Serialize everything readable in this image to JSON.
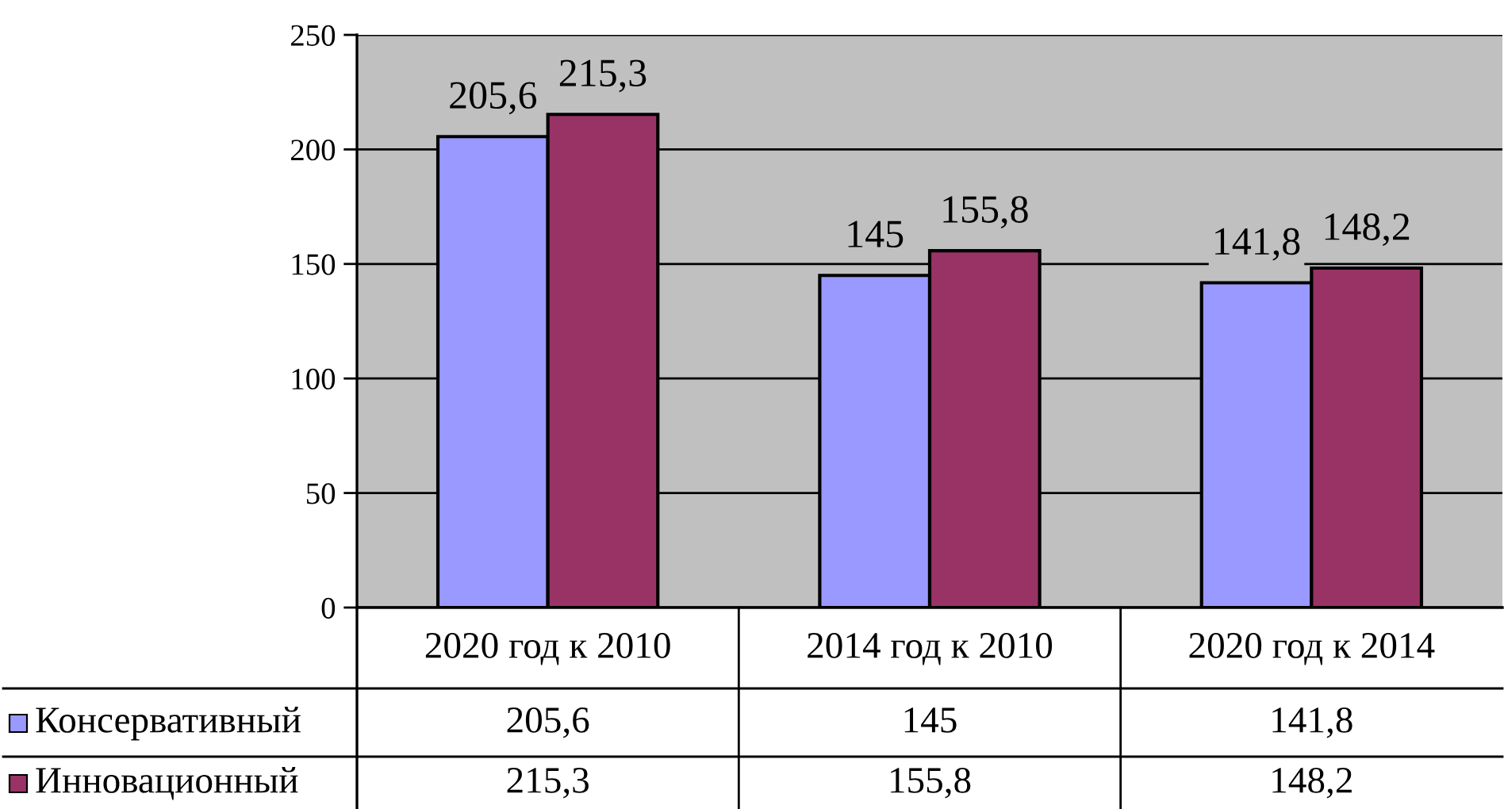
{
  "chart_data": {
    "type": "bar",
    "categories": [
      "2020 год к 2010",
      "2014 год к 2010",
      "2020 год к 2014"
    ],
    "series": [
      {
        "name": "Консервативный",
        "color": "#9999ff",
        "values": [
          205.6,
          145,
          141.8
        ],
        "value_labels": [
          "205,6",
          "145",
          "141,8"
        ]
      },
      {
        "name": "Инновационный",
        "color": "#993366",
        "values": [
          215.3,
          155.8,
          148.2
        ],
        "value_labels": [
          "215,3",
          "155,8",
          "148,2"
        ]
      }
    ],
    "ylim": [
      0,
      250
    ],
    "yticks": [
      0,
      50,
      100,
      150,
      200,
      250
    ],
    "grid": "y",
    "legend": "bottom left"
  }
}
